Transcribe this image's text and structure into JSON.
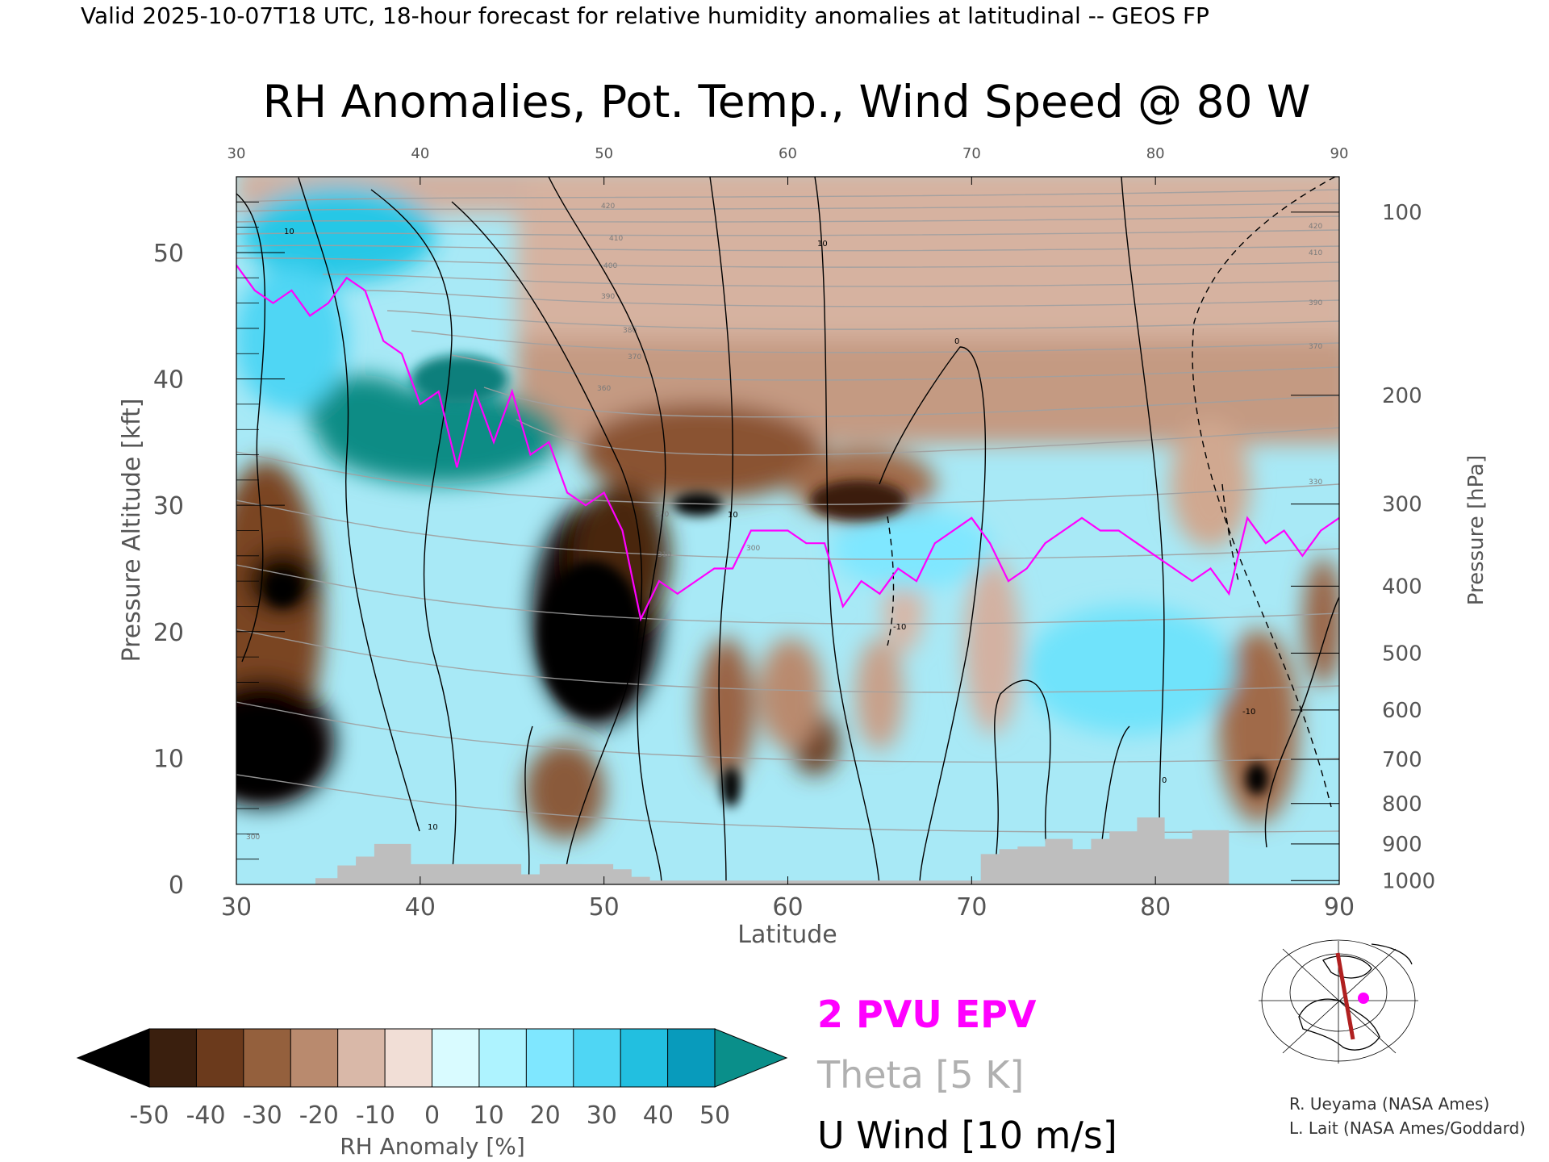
{
  "header": {
    "valid_line": "Valid 2025-10-07T18 UTC, 18-hour forecast for relative humidity anomalies at latitudinal -- GEOS FP"
  },
  "chart_data": {
    "type": "heatmap",
    "title": "RH Anomalies, Pot. Temp., Wind Speed @ 80 W",
    "xlabel": "Latitude",
    "ylabel_left": "Pressure Altitude [kft]",
    "ylabel_right": "Pressure [hPa]",
    "xlim": [
      30,
      90
    ],
    "ylim": [
      0,
      56
    ],
    "x_ticks": [
      30,
      40,
      50,
      60,
      70,
      80,
      90
    ],
    "y_ticks": [
      0,
      10,
      20,
      30,
      40,
      50
    ],
    "pressure_ticks": [
      {
        "label": "100",
        "kft": 53.2
      },
      {
        "label": "200",
        "kft": 38.7
      },
      {
        "label": "300",
        "kft": 30.1
      },
      {
        "label": "400",
        "kft": 23.6
      },
      {
        "label": "500",
        "kft": 18.3
      },
      {
        "label": "600",
        "kft": 13.8
      },
      {
        "label": "700",
        "kft": 9.9
      },
      {
        "label": "800",
        "kft": 6.4
      },
      {
        "label": "900",
        "kft": 3.2
      },
      {
        "label": "1000",
        "kft": 0.3
      }
    ],
    "colorbar": {
      "label": "RH Anomaly [%]",
      "ticks": [
        "-50",
        "-40",
        "-30",
        "-20",
        "-10",
        "0",
        "10",
        "20",
        "30",
        "40",
        "50"
      ],
      "colors": [
        "#000000",
        "#3a1f0e",
        "#6b3a1c",
        "#94603d",
        "#b98a6e",
        "#d9b8a8",
        "#f1ded6",
        "#d9fbff",
        "#aef3ff",
        "#7fe7ff",
        "#4fd6f4",
        "#22bfe0",
        "#089bbc",
        "#0a8f8a"
      ]
    },
    "legend": [
      {
        "name": "2 PVU EPV",
        "color": "#ff00ff"
      },
      {
        "name": "Theta [5 K]",
        "color": "#b0b0b0"
      },
      {
        "name": "U Wind [10 m/s]",
        "color": "#000000"
      }
    ],
    "theta_labels": [
      "300",
      "310",
      "320",
      "330",
      "340",
      "350",
      "360",
      "370",
      "380",
      "390",
      "400",
      "410",
      "420"
    ],
    "wind_labels": [
      "0",
      "10",
      "-10"
    ],
    "pvu_line": {
      "lat": [
        30,
        31,
        32,
        33,
        34,
        35,
        36,
        37,
        38,
        39,
        40,
        41,
        42,
        43,
        44,
        45,
        46,
        47,
        48,
        49,
        50,
        51,
        52,
        53,
        54,
        55,
        56,
        57,
        58,
        59,
        60,
        61,
        62,
        63,
        64,
        65,
        66,
        67,
        68,
        69,
        70,
        71,
        72,
        73,
        74,
        75,
        76,
        77,
        78,
        79,
        80,
        81,
        82,
        83,
        84,
        85,
        86,
        87,
        88,
        89,
        90
      ],
      "kft": [
        49,
        47,
        46,
        47,
        45,
        46,
        48,
        47,
        43,
        42,
        38,
        39,
        33,
        39,
        35,
        39,
        34,
        35,
        31,
        30,
        31,
        28,
        21,
        24,
        23,
        24,
        25,
        25,
        28,
        28,
        28,
        27,
        27,
        22,
        24,
        23,
        25,
        24,
        27,
        28,
        29,
        27,
        24,
        25,
        27,
        28,
        29,
        28,
        28,
        27,
        26,
        25,
        24,
        25,
        23,
        29,
        27,
        28,
        26,
        28,
        29
      ]
    },
    "terrain": {
      "lat": [
        34.3,
        35.5,
        36.5,
        37.5,
        39.5,
        41.5,
        45.5,
        46.5,
        50.5,
        51.5,
        52.5,
        67,
        70.5,
        71.5,
        72.5,
        74,
        75.5,
        76.5,
        77.5,
        79,
        80.5,
        82,
        84
      ],
      "kft": [
        0.5,
        1.5,
        2.2,
        3.2,
        1.6,
        1.6,
        0.8,
        1.6,
        1.2,
        0.6,
        0.3,
        0.3,
        2.4,
        2.8,
        3.0,
        3.6,
        2.8,
        3.6,
        4.2,
        5.3,
        3.6,
        4.3,
        0.3
      ]
    }
  },
  "inset_map": {
    "name": "cross-section location map"
  },
  "credits": {
    "line1": "R. Ueyama (NASA Ames)",
    "line2": "L. Lait (NASA Ames/Goddard)"
  }
}
